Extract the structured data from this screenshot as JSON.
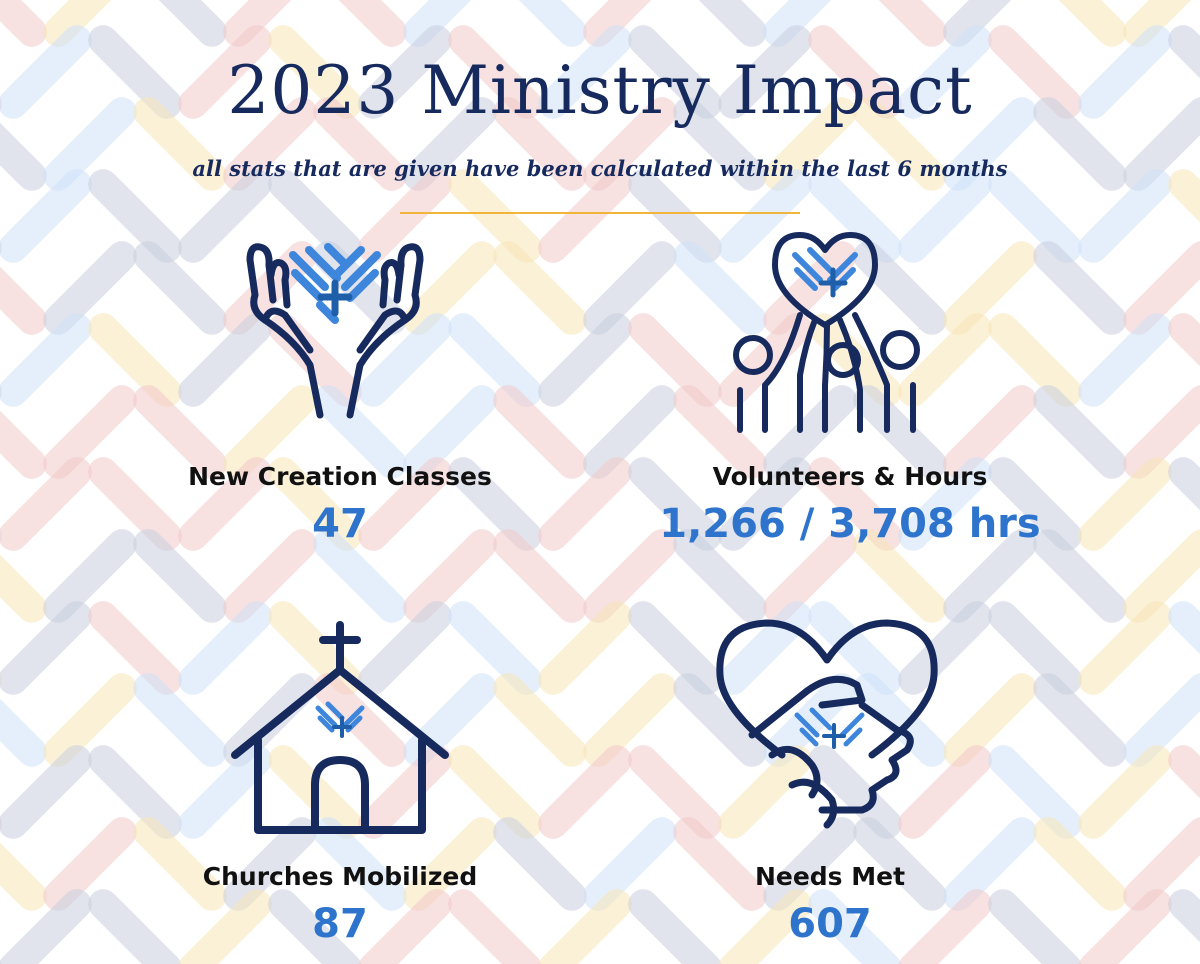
{
  "header": {
    "title": "2023 Ministry Impact",
    "subtitle": "all stats that are given have been calculated within the last 6 months"
  },
  "colors": {
    "navy": "#172a5e",
    "accent_blue": "#2f74cc",
    "rule_gold": "#f0b53a",
    "pattern": [
      "#f2c9c9",
      "#c9cfe0",
      "#f8e6b8",
      "#cfe2f8"
    ]
  },
  "stats": [
    {
      "label": "New Creation Classes",
      "value": "47",
      "icon": "hands-heart-icon"
    },
    {
      "label": "Volunteers & Hours",
      "value": "1,266 / 3,708 hrs",
      "icon": "people-heart-icon"
    },
    {
      "label": "Churches Mobilized",
      "value": "87",
      "icon": "church-icon"
    },
    {
      "label": "Needs Met",
      "value": "607",
      "icon": "handshake-heart-icon"
    }
  ]
}
